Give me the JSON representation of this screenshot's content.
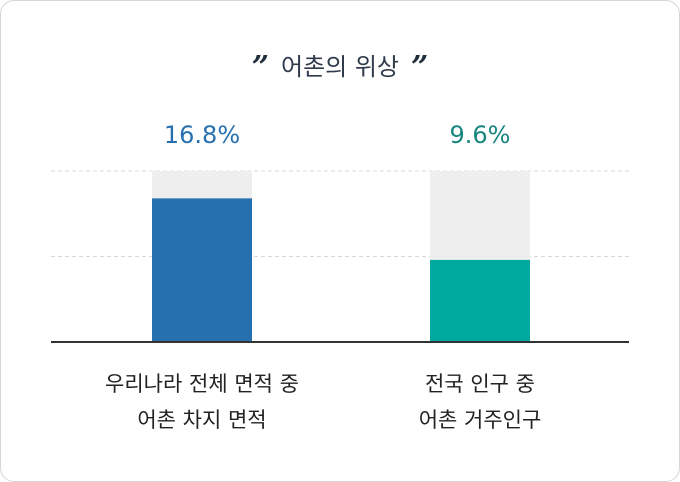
{
  "chart_data": {
    "type": "bar",
    "title": "어촌의 위상",
    "title_quote_open": "”",
    "title_quote_close": "”",
    "ylim": [
      0,
      20
    ],
    "grid": true,
    "categories": [
      [
        "우리나라 전체 면적 중",
        "어촌 차지 면적"
      ],
      [
        "전국 인구 중",
        "어촌 거주인구"
      ]
    ],
    "values": [
      16.8,
      9.6
    ],
    "value_labels": [
      "16.8%",
      "9.6%"
    ],
    "colors": {
      "bars": [
        "#2670b0",
        "#00a99d"
      ],
      "value_labels": [
        "#2670b0",
        "#17867f"
      ],
      "track": "#eeeeee",
      "grid": "#d8d8d8",
      "axis": "#333333",
      "category_text": "#222222"
    }
  }
}
